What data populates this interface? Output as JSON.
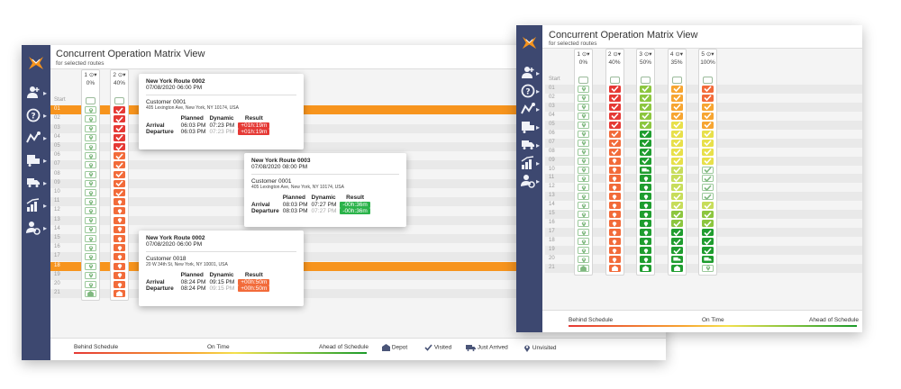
{
  "title": "Concurrent Operation Matrix View",
  "subtitle": "for selected routes",
  "start_label": "Start",
  "row_labels": [
    "01",
    "02",
    "03",
    "04",
    "05",
    "06",
    "07",
    "08",
    "09",
    "10",
    "11",
    "12",
    "13",
    "14",
    "15",
    "16",
    "17",
    "18",
    "19",
    "20",
    "21"
  ],
  "nav_icons": [
    "add-user-icon",
    "help-icon",
    "routes-icon",
    "delivery-icon",
    "trucks-icon",
    "analytics-icon",
    "user-settings-icon"
  ],
  "routesA": [
    {
      "num": "1",
      "pct": "0%"
    },
    {
      "num": "2",
      "pct": "40%"
    }
  ],
  "routesB": [
    {
      "num": "1",
      "pct": "0%"
    },
    {
      "num": "2",
      "pct": "40%"
    },
    {
      "num": "3",
      "pct": "50%"
    },
    {
      "num": "4",
      "pct": "35%"
    },
    {
      "num": "5",
      "pct": "100%"
    }
  ],
  "legend": {
    "behind": "Behind Schedule",
    "ontime": "On Time",
    "ahead": "Ahead of Schedule",
    "depot": "Depot",
    "visited": "Visited",
    "just_arrived": "Just Arrived",
    "unvisited": "Unvisited"
  },
  "table_headers": {
    "planned": "Planned",
    "dynamic": "Dynamic",
    "result": "Result",
    "arrival": "Arrival",
    "departure": "Departure"
  },
  "tooltips": [
    {
      "route": "New York Route 0002",
      "date": "07/08/2020 06:00 PM",
      "customer": "Customer 0001",
      "address": "405 Lexington Ave, New York, NY 10174, USA",
      "arr_planned": "06:03 PM",
      "arr_dynamic": "07:23 PM",
      "arr_result": "+01h:19m",
      "dep_planned": "06:03 PM",
      "dep_dynamic": "07:23 PM",
      "dep_result": "+01h:19m",
      "color": "#e53935"
    },
    {
      "route": "New York Route 0003",
      "date": "07/08/2020 08:00 PM",
      "customer": "Customer 0001",
      "address": "405 Lexington Ave, New York, NY 10174, USA",
      "arr_planned": "08:03 PM",
      "arr_dynamic": "07:27 PM",
      "arr_result": "-00h:36m",
      "dep_planned": "08:03 PM",
      "dep_dynamic": "07:27 PM",
      "dep_result": "-00h:36m",
      "color": "#2bb34a"
    },
    {
      "route": "New York Route 0002",
      "date": "07/08/2020 06:00 PM",
      "customer": "Customer 0018",
      "address": "20 W 34th St, New York, NY 10001, USA",
      "arr_planned": "08:24 PM",
      "arr_dynamic": "09:15 PM",
      "arr_result": "+00h:50m",
      "dep_planned": "08:24 PM",
      "dep_dynamic": "09:15 PM",
      "dep_result": "+00h:50m",
      "color": "#f26b3a"
    }
  ],
  "colors": {
    "sidebar": "#3d4870",
    "orange": "#f7941d",
    "behind": "#e53935",
    "ahead": "#1b9a2a"
  }
}
